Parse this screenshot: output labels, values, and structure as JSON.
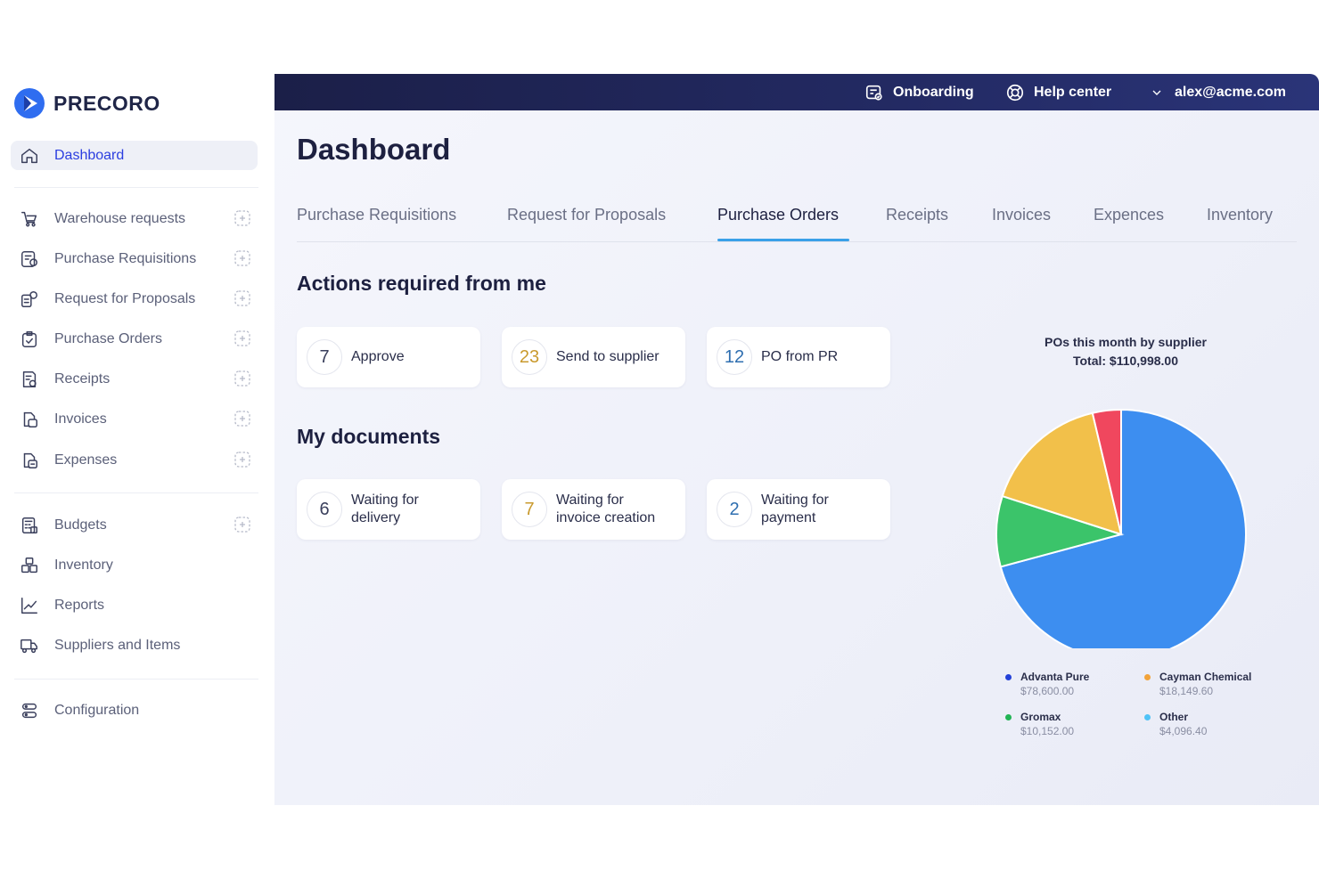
{
  "brand": {
    "name": "PRECORO"
  },
  "topbar": {
    "onboarding": "Onboarding",
    "help": "Help center",
    "user": "alex@acme.com"
  },
  "sidebar": {
    "items": [
      {
        "label": "Dashboard",
        "icon": "home-icon",
        "active": true
      },
      {
        "label": "Warehouse requests",
        "icon": "cart-icon",
        "add": true
      },
      {
        "label": "Purchase Requisitions",
        "icon": "requisition-icon",
        "add": true
      },
      {
        "label": "Request for Proposals",
        "icon": "proposal-icon",
        "add": true
      },
      {
        "label": "Purchase Orders",
        "icon": "order-icon",
        "add": true
      },
      {
        "label": "Receipts",
        "icon": "receipt-icon",
        "add": true
      },
      {
        "label": "Invoices",
        "icon": "invoice-icon",
        "add": true
      },
      {
        "label": "Expenses",
        "icon": "expense-icon",
        "add": true
      },
      {
        "label": "Budgets",
        "icon": "budget-icon",
        "add": true
      },
      {
        "label": "Inventory",
        "icon": "boxes-icon"
      },
      {
        "label": "Reports",
        "icon": "chart-line-icon"
      },
      {
        "label": "Suppliers and Items",
        "icon": "truck-icon"
      },
      {
        "label": "Configuration",
        "icon": "config-icon"
      }
    ]
  },
  "page": {
    "title": "Dashboard"
  },
  "tabs": [
    {
      "label": "Purchase Requisitions"
    },
    {
      "label": "Request for Proposals"
    },
    {
      "label": "Purchase Orders",
      "active": true
    },
    {
      "label": "Receipts"
    },
    {
      "label": "Invoices"
    },
    {
      "label": "Expences"
    },
    {
      "label": "Inventory"
    }
  ],
  "actions": {
    "title": "Actions required from me",
    "cards": [
      {
        "count": "7",
        "label": "Approve",
        "color": "#3a3f5c"
      },
      {
        "count": "23",
        "label": "Send to supplier",
        "color": "#c99a2e"
      },
      {
        "count": "12",
        "label": "PO from PR",
        "color": "#2f6fb0"
      }
    ]
  },
  "documents": {
    "title": "My documents",
    "cards": [
      {
        "count": "6",
        "label_line1": "Waiting for",
        "label_line2": "delivery",
        "color": "#3a3f5c"
      },
      {
        "count": "7",
        "label_line1": "Waiting for",
        "label_line2": "invoice creation",
        "color": "#c99a2e"
      },
      {
        "count": "2",
        "label_line1": "Waiting for",
        "label_line2": "payment",
        "color": "#2f6fb0"
      }
    ]
  },
  "chart_data": {
    "type": "pie",
    "title": "POs this month by supplier",
    "subtitle": "Total: $110,998.00",
    "series": [
      {
        "name": "Advanta Pure",
        "value": 78600.0,
        "label": "$78,600.00",
        "color": "#3d8ef0",
        "dot": "#2340d8"
      },
      {
        "name": "Gromax",
        "value": 10152.0,
        "label": "$10,152.00",
        "color": "#3bc46a",
        "dot": "#22b455"
      },
      {
        "name": "Cayman Chemical",
        "value": 18149.6,
        "label": "$18,149.60",
        "color": "#f2c04a",
        "dot": "#f2a33a"
      },
      {
        "name": "Other",
        "value": 4096.4,
        "label": "$4,096.40",
        "color": "#f0475e",
        "dot": "#4fc3f7"
      }
    ],
    "legend": "bottom"
  }
}
